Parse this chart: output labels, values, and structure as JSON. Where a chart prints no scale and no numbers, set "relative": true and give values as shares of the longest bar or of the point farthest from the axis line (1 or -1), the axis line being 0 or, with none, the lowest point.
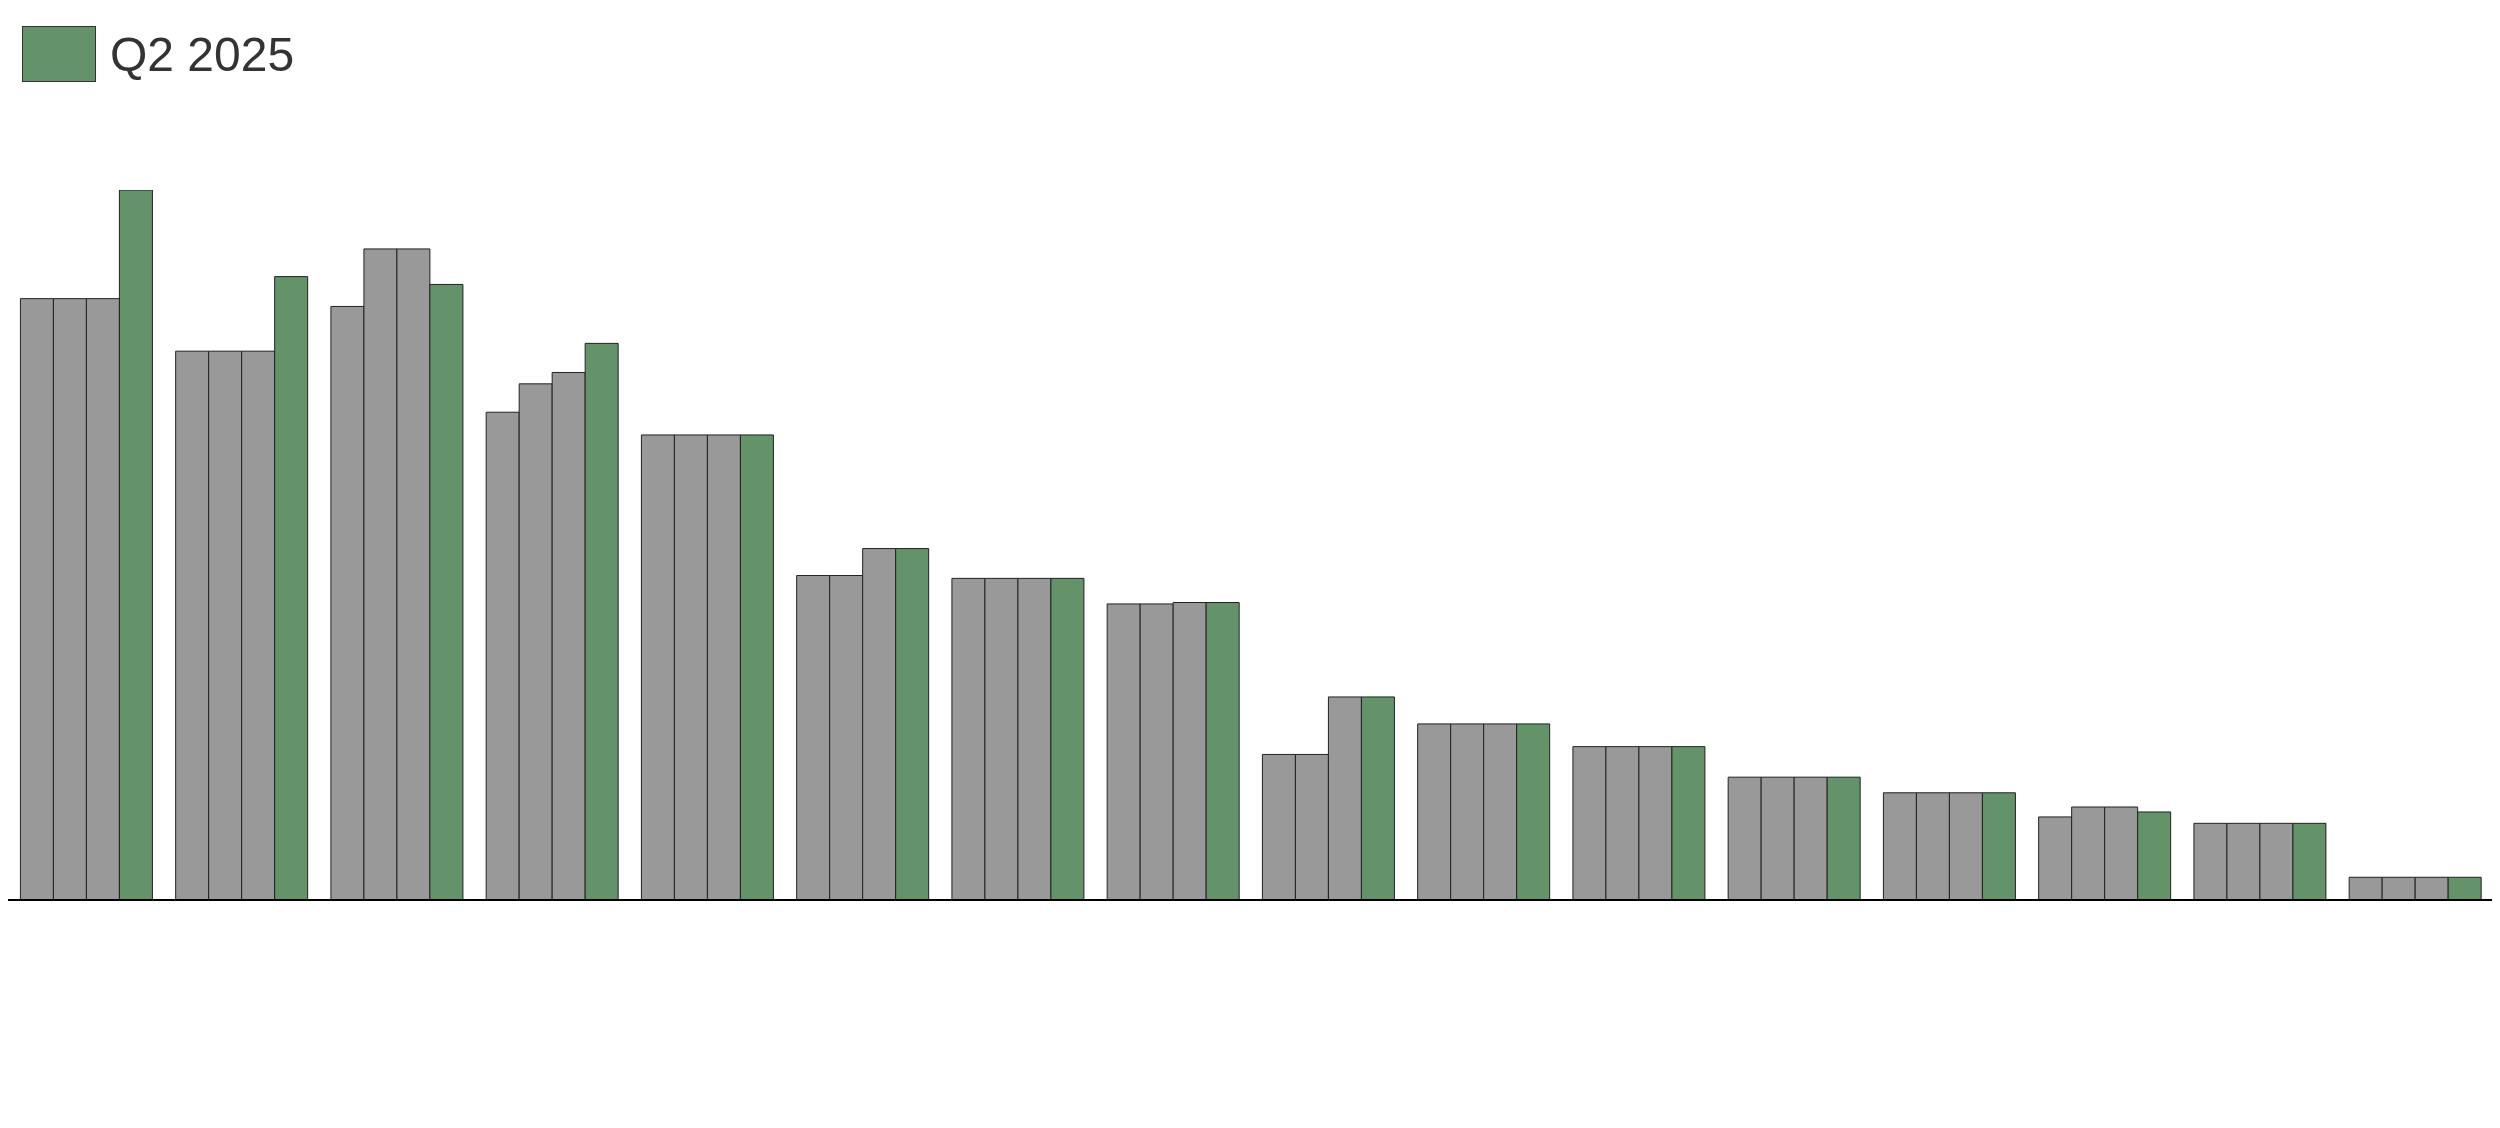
{
  "chart_data": {
    "type": "bar",
    "relative": true,
    "legend": "top left",
    "grid": false,
    "categories": [
      null,
      null,
      null,
      null,
      null,
      null,
      null,
      null,
      null,
      null,
      null,
      null,
      null,
      null,
      null,
      null
    ],
    "series": [
      {
        "color": "#999999",
        "values": [
          0.847,
          0.773,
          0.836,
          0.687,
          0.655,
          0.457,
          0.453,
          0.417,
          0.205,
          0.248,
          0.216,
          0.173,
          0.151,
          0.117,
          0.108,
          0.032
        ]
      },
      {
        "color": "#999999",
        "values": [
          0.847,
          0.773,
          0.917,
          0.727,
          0.655,
          0.457,
          0.453,
          0.417,
          0.205,
          0.248,
          0.216,
          0.173,
          0.151,
          0.131,
          0.108,
          0.032
        ]
      },
      {
        "color": "#999999",
        "values": [
          0.847,
          0.773,
          0.917,
          0.743,
          0.655,
          0.495,
          0.453,
          0.419,
          0.286,
          0.248,
          0.216,
          0.173,
          0.151,
          0.131,
          0.108,
          0.032
        ]
      },
      {
        "name": "Q2 2025",
        "color": "#64936a",
        "values": [
          1.0,
          0.878,
          0.867,
          0.784,
          0.655,
          0.495,
          0.453,
          0.419,
          0.286,
          0.248,
          0.216,
          0.173,
          0.151,
          0.124,
          0.108,
          0.032
        ]
      }
    ]
  }
}
